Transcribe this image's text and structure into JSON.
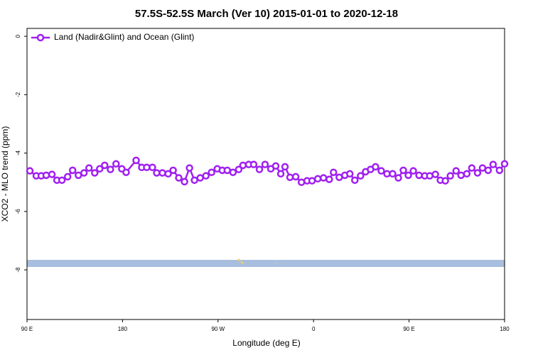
{
  "chart_data": {
    "type": "line",
    "title": "57.5S-52.5S March (Ver 10)   2015-01-01 to 2020-12-18",
    "x_label": "Longitude (deg E)",
    "y_label": "XCO2 - MLO trend (ppm)",
    "xlim": [
      90,
      540
    ],
    "ylim": [
      -9.7,
      0.27
    ],
    "xticks": [
      {
        "value": 90,
        "label": "90 E"
      },
      {
        "value": 180,
        "label": "180"
      },
      {
        "value": 270,
        "label": "90 W"
      },
      {
        "value": 360,
        "label": "0"
      },
      {
        "value": 450,
        "label": "90 E"
      },
      {
        "value": 540,
        "label": "180"
      }
    ],
    "yticks": [
      0,
      -2,
      -4,
      -6,
      -8
    ],
    "legend": "top-left",
    "x": [
      92.7,
      98.7,
      103.4,
      108.1,
      113.5,
      118.2,
      122.9,
      128.3,
      133,
      138.4,
      143.7,
      148.4,
      153.8,
      158.5,
      163.2,
      168.6,
      173.9,
      179.3,
      183.4,
      192.8,
      198.1,
      202.8,
      208.2,
      212.2,
      217.6,
      223,
      227.7,
      233,
      238.4,
      243.1,
      247.8,
      253.2,
      258.6,
      263.9,
      269.3,
      274,
      278.7,
      284.1,
      289.5,
      293.5,
      298.9,
      303.6,
      309,
      314.3,
      319.7,
      324.4,
      329.1,
      333.1,
      337.8,
      343.2,
      348.6,
      353.9,
      358.6,
      364,
      369.4,
      374.8,
      378.8,
      384.2,
      389.5,
      394.2,
      398.9,
      404.3,
      409,
      413.7,
      418.4,
      423.8,
      429.2,
      434.5,
      439.9,
      444.6,
      449.3,
      454,
      459.4,
      464.8,
      469.5,
      474.8,
      479.5,
      484.2,
      488.9,
      494.3,
      499,
      504.4,
      509.1,
      514.5,
      519.2,
      524.5,
      529.2,
      535.2,
      540
    ],
    "series": [
      {
        "name": "Land (Nadir&Glint) and Ocean (Glint)",
        "color": "#a020f0",
        "values": [
          -4.61,
          -4.78,
          -4.78,
          -4.76,
          -4.73,
          -4.93,
          -4.93,
          -4.81,
          -4.59,
          -4.76,
          -4.68,
          -4.51,
          -4.68,
          -4.54,
          -4.42,
          -4.56,
          -4.37,
          -4.54,
          -4.66,
          -4.25,
          -4.49,
          -4.49,
          -4.49,
          -4.68,
          -4.68,
          -4.71,
          -4.59,
          -4.85,
          -4.98,
          -4.51,
          -4.93,
          -4.85,
          -4.78,
          -4.66,
          -4.54,
          -4.59,
          -4.59,
          -4.66,
          -4.56,
          -4.42,
          -4.39,
          -4.39,
          -4.56,
          -4.39,
          -4.54,
          -4.44,
          -4.71,
          -4.47,
          -4.83,
          -4.81,
          -5.0,
          -4.95,
          -4.95,
          -4.88,
          -4.85,
          -4.9,
          -4.66,
          -4.83,
          -4.76,
          -4.71,
          -4.93,
          -4.78,
          -4.64,
          -4.56,
          -4.47,
          -4.61,
          -4.71,
          -4.71,
          -4.85,
          -4.59,
          -4.76,
          -4.61,
          -4.76,
          -4.78,
          -4.78,
          -4.73,
          -4.93,
          -4.95,
          -4.78,
          -4.61,
          -4.76,
          -4.71,
          -4.51,
          -4.68,
          -4.51,
          -4.59,
          -4.39,
          -4.59,
          -4.37
        ]
      }
    ]
  }
}
